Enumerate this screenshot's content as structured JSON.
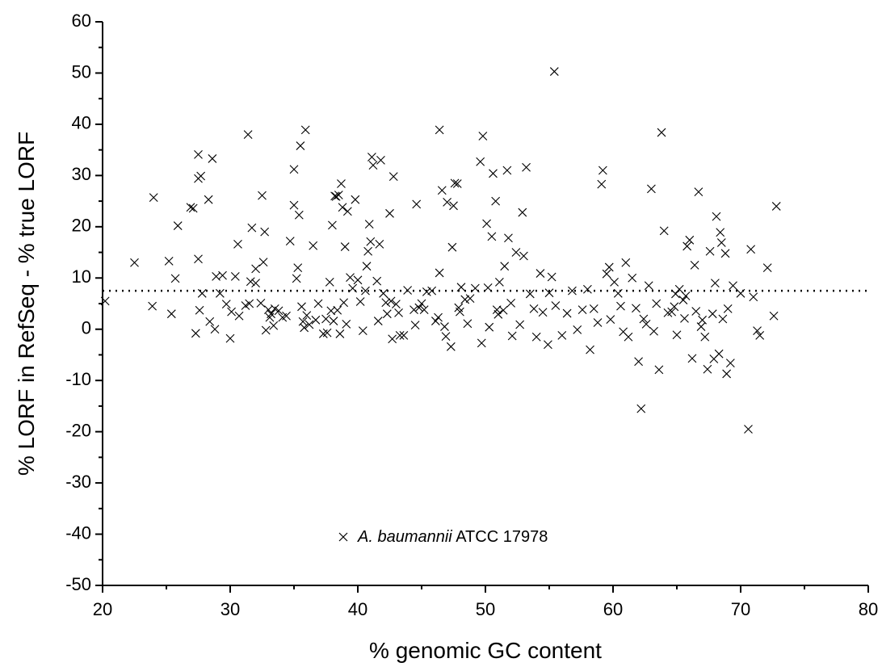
{
  "chart_data": {
    "type": "scatter",
    "x_label": "% genomic GC content",
    "y_label": "% LORF in RefSeq - % true LORF",
    "xlim": [
      20,
      80
    ],
    "ylim": [
      -50,
      60
    ],
    "xticks": [
      20,
      30,
      40,
      50,
      60,
      70,
      80
    ],
    "yticks": [
      -50,
      -40,
      -30,
      -20,
      -10,
      0,
      10,
      20,
      30,
      40,
      50,
      60
    ],
    "reference_line": 7.5,
    "annotation": {
      "italic": "A. baumannii",
      "text": "ATCC 17978"
    },
    "series": [
      {
        "color": "#000000",
        "x": [
          55.4,
          20.2,
          22.5,
          24,
          23.9,
          25.2,
          25.4,
          25.7,
          25.9,
          26.9,
          27.1,
          27.3,
          27.5,
          27.5,
          27.7,
          27.5,
          27.8,
          27.6,
          28.3,
          28.6,
          28.4,
          28.8,
          28.9,
          29.2,
          29.4,
          29.7,
          30,
          30.1,
          30.4,
          30.6,
          30.7,
          31.2,
          31.4,
          31.6,
          31.7,
          32,
          32.4,
          32.5,
          32.6,
          32.7,
          32.8,
          33,
          33.2,
          33.4,
          33.5,
          34.1,
          34.4,
          34.7,
          35,
          35,
          35.2,
          35.3,
          35.4,
          35.5,
          35.6,
          35.7,
          35.8,
          35.9,
          36,
          36.5,
          36.7,
          37.3,
          37.6,
          37.8,
          37.9,
          38,
          38.2,
          38.3,
          38.5,
          38.6,
          38.7,
          38.8,
          39,
          39.2,
          39.4,
          39.6,
          39.8,
          40.2,
          40.4,
          40.6,
          40.7,
          40.8,
          40.9,
          41,
          41.1,
          41.2,
          41.5,
          41.6,
          41.7,
          41.8,
          42,
          42.2,
          42.5,
          42.6,
          42.7,
          42.8,
          43,
          43.3,
          43.6,
          43.9,
          44.4,
          44.6,
          44.8,
          45,
          45.4,
          45.8,
          46.1,
          46.3,
          46.4,
          46.4,
          46.6,
          46.9,
          47,
          47.3,
          47.4,
          47.5,
          47.6,
          47.8,
          47.9,
          48.1,
          48.4,
          48.6,
          49.2,
          49.6,
          49.7,
          49.8,
          50.1,
          50.3,
          50.5,
          50.6,
          50.8,
          50.9,
          51.1,
          51.4,
          51.5,
          51.7,
          51.8,
          52.1,
          52.4,
          52.7,
          52.9,
          53,
          53.2,
          53.5,
          54,
          54.3,
          54.5,
          54.9,
          55.2,
          55.5,
          56,
          56.4,
          57.2,
          57.6,
          58,
          58.2,
          58.8,
          59.1,
          59.2,
          59.5,
          59.7,
          60.1,
          60.4,
          60.8,
          61,
          61.2,
          61.5,
          62,
          62.2,
          62.4,
          62.8,
          63,
          63.2,
          63.6,
          63.8,
          64,
          64.3,
          64.6,
          64.9,
          65,
          65.2,
          65.5,
          65.7,
          65.8,
          66,
          66.2,
          66.4,
          66.7,
          66.9,
          67.2,
          67.4,
          67.6,
          67.9,
          68.1,
          68.3,
          68.4,
          68.5,
          68.8,
          68.9,
          69.2,
          69.4,
          70,
          70.6,
          70.8,
          71,
          71.3,
          71.5,
          72.1,
          72.6,
          72.8,
          31.5,
          32,
          33.1,
          33.8,
          36.2,
          36.9,
          37.5,
          38.1,
          38.4,
          38.9,
          39.1,
          40,
          42.3,
          43.2,
          44.5,
          45.2,
          46.8,
          48,
          48.8,
          50.2,
          51,
          52,
          53.8,
          55,
          56.8,
          58.5,
          59.8,
          60.6,
          61.8,
          62.6,
          63.4,
          64.8,
          65.6,
          66.5,
          67,
          67.8,
          68,
          68.6,
          69
        ],
        "y": [
          50.3,
          5.5,
          13,
          25.7,
          4.5,
          13.3,
          3,
          9.9,
          20.2,
          23.8,
          23.6,
          -0.8,
          34.1,
          29.4,
          29.9,
          13.7,
          7,
          3.7,
          25.3,
          33.3,
          1.5,
          0,
          10.3,
          7,
          10.5,
          4.9,
          -1.8,
          3.4,
          10.3,
          16.6,
          2.6,
          4.6,
          38,
          9.3,
          19.8,
          11.8,
          5.1,
          26.1,
          13.1,
          19,
          -0.2,
          3.8,
          3,
          0.7,
          4,
          2.3,
          2.6,
          17.2,
          31.2,
          24.2,
          9.9,
          12,
          22.3,
          35.8,
          4.4,
          1.5,
          0.3,
          38.9,
          2.7,
          16.3,
          1.8,
          -0.9,
          -0.7,
          9.2,
          3.6,
          20.3,
          26,
          25.9,
          26.2,
          -0.9,
          28.4,
          23.8,
          16.1,
          23,
          10.1,
          8,
          25.3,
          5.4,
          -0.3,
          7.5,
          12.3,
          15.2,
          20.5,
          17.1,
          33.6,
          32,
          9.4,
          1.6,
          16.6,
          33,
          7,
          5.2,
          22.6,
          5.5,
          -1.9,
          29.8,
          4.9,
          -1.2,
          -1.2,
          7.6,
          3.8,
          24.4,
          4.2,
          5,
          7.3,
          7.5,
          1.6,
          2.3,
          11,
          38.9,
          27.1,
          -1.4,
          24.8,
          -3.4,
          16,
          24.1,
          28.5,
          28.4,
          4.2,
          8.2,
          5.8,
          1.1,
          8,
          32.7,
          -2.7,
          37.7,
          20.6,
          0.4,
          18.1,
          30.4,
          25,
          3.8,
          9.2,
          3.7,
          12.3,
          31,
          17.8,
          -1.3,
          15,
          0.9,
          22.8,
          14.3,
          31.6,
          6.9,
          -1.5,
          10.9,
          3.3,
          -3,
          10.2,
          4.6,
          -1.2,
          3.1,
          -0.1,
          3.8,
          7.8,
          -4,
          1.3,
          28.3,
          31,
          10.8,
          12.1,
          9.2,
          7,
          -0.5,
          13,
          -1.5,
          10,
          -6.3,
          -15.5,
          2,
          8.5,
          27.4,
          -0.4,
          -7.9,
          38.4,
          19.2,
          3.2,
          3.4,
          6.9,
          -1.1,
          7.8,
          5.7,
          6.5,
          16.2,
          17.4,
          -5.7,
          12.5,
          26.8,
          0.5,
          -1.5,
          -7.8,
          15.2,
          -5.8,
          22,
          -4.8,
          18.9,
          16.9,
          14.8,
          -8.7,
          -6.6,
          8.5,
          7,
          -19.5,
          15.6,
          6.3,
          -0.3,
          -1.2,
          12,
          2.6,
          24,
          5,
          9,
          2.3,
          3.6,
          0.9,
          5,
          2,
          1.6,
          3.7,
          5.2,
          1,
          9.6,
          3,
          3.2,
          0.8,
          3.8,
          0.5,
          3.4,
          6,
          8.1,
          2.9,
          5.1,
          4,
          7.1,
          7.5,
          4,
          1.9,
          4.5,
          4.1,
          1,
          5,
          4.4,
          2.1,
          3.5,
          1.8,
          3,
          9,
          2,
          4
        ]
      }
    ]
  }
}
